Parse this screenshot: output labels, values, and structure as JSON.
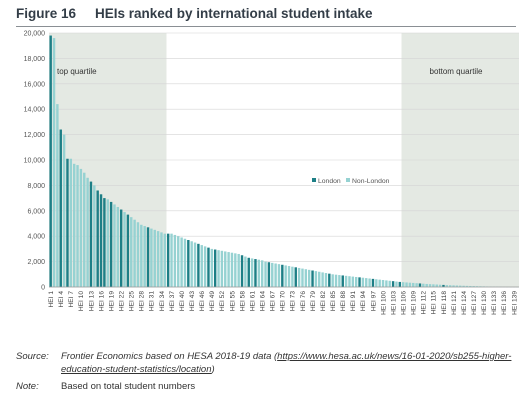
{
  "figure": {
    "number": "Figure 16",
    "title": "HEIs ranked by international student intake"
  },
  "chart_data": {
    "type": "bar",
    "ylim": [
      0,
      20000
    ],
    "yticks": [
      0,
      2000,
      4000,
      6000,
      8000,
      10000,
      12000,
      14000,
      16000,
      18000,
      20000
    ],
    "ytick_labels": [
      "0",
      "2,000",
      "4,000",
      "6,000",
      "8,000",
      "10,000",
      "12,000",
      "14,000",
      "16,000",
      "18,000",
      "20,000"
    ],
    "grid": true,
    "legend_position": "top-center",
    "legend": [
      {
        "name": "London",
        "color": "#1d7f86"
      },
      {
        "name": "Non-London",
        "color": "#96d2d2"
      }
    ],
    "bands": [
      {
        "label": "top quartile",
        "from": 1,
        "to": 35
      },
      {
        "label": "bottom quartile",
        "from": 106,
        "to": 140
      }
    ],
    "category_prefix": "HEI ",
    "tick_every": 3,
    "london_ranks": [
      1,
      4,
      6,
      13,
      15,
      16,
      17,
      19,
      22,
      24,
      30,
      36,
      42,
      45,
      48,
      50,
      58,
      60,
      62,
      66,
      70,
      74,
      79,
      84,
      88,
      93,
      97,
      103,
      105,
      111,
      118
    ],
    "values": [
      19800,
      19600,
      14400,
      12400,
      12000,
      10100,
      10100,
      9700,
      9600,
      9300,
      9000,
      8600,
      8300,
      8000,
      7600,
      7300,
      7000,
      6900,
      6700,
      6500,
      6300,
      6100,
      5900,
      5700,
      5500,
      5300,
      5100,
      4900,
      4800,
      4700,
      4600,
      4500,
      4400,
      4300,
      4200,
      4200,
      4200,
      4100,
      4000,
      3900,
      3800,
      3700,
      3600,
      3500,
      3400,
      3300,
      3200,
      3100,
      3000,
      2950,
      2900,
      2850,
      2800,
      2750,
      2700,
      2650,
      2600,
      2500,
      2400,
      2300,
      2250,
      2200,
      2150,
      2100,
      2000,
      1950,
      1900,
      1850,
      1800,
      1750,
      1700,
      1650,
      1600,
      1550,
      1500,
      1450,
      1400,
      1350,
      1300,
      1250,
      1200,
      1150,
      1100,
      1050,
      1000,
      970,
      940,
      910,
      880,
      850,
      820,
      790,
      760,
      730,
      700,
      670,
      640,
      610,
      580,
      550,
      520,
      490,
      460,
      430,
      400,
      380,
      360,
      340,
      320,
      300,
      280,
      260,
      240,
      225,
      210,
      195,
      180,
      165,
      150,
      140,
      130,
      120,
      110,
      100,
      90,
      80,
      72,
      64,
      56,
      48,
      40,
      34,
      28,
      22,
      17,
      13,
      10,
      7,
      5,
      3
    ]
  },
  "source": {
    "label": "Source:",
    "text": "Frontier Economics based on HESA 2018-19 data (",
    "link": "https://www.hesa.ac.uk/news/16-01-2020/sb255-higher-education-student-statistics/location",
    "text_end": ")"
  },
  "note": {
    "label": "Note:",
    "text": "Based on total student numbers"
  }
}
